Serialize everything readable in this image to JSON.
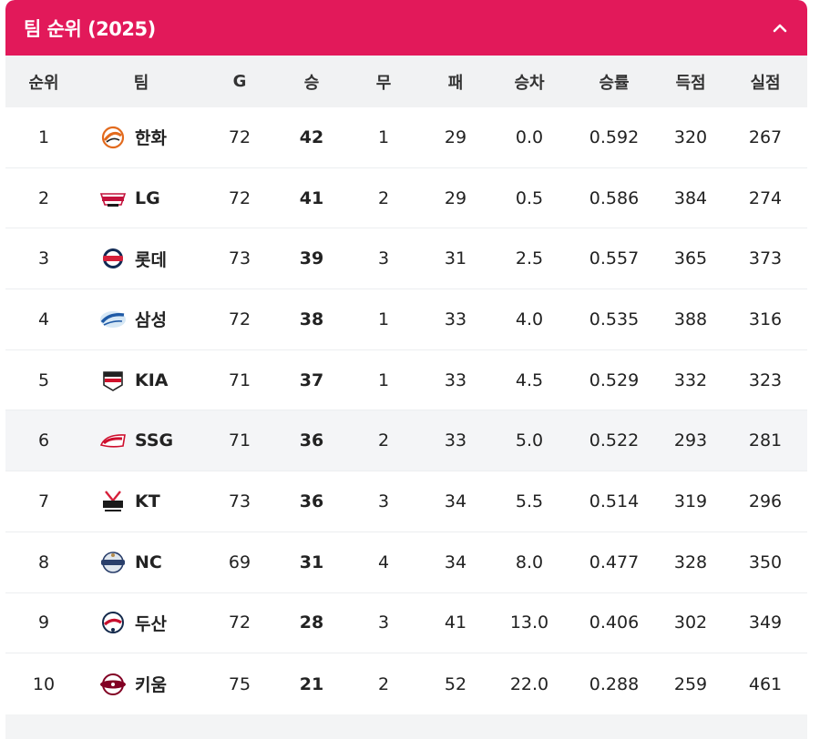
{
  "header": {
    "title": "팀 순위 (2025)",
    "collapse_icon": "chevron-up-icon"
  },
  "columns": [
    "순위",
    "팀",
    "G",
    "승",
    "무",
    "패",
    "승차",
    "승률",
    "득점",
    "실점"
  ],
  "colors": {
    "header_bg": "#e2195a",
    "header_text": "#ffffff"
  },
  "teams": [
    {
      "rank": "1",
      "name": "한화",
      "logo": "eagles-logo-icon",
      "g": "72",
      "w": "42",
      "d": "1",
      "l": "29",
      "gb": "0.0",
      "pct": "0.592",
      "rs": "320",
      "ra": "267"
    },
    {
      "rank": "2",
      "name": "LG",
      "logo": "twins-logo-icon",
      "g": "72",
      "w": "41",
      "d": "2",
      "l": "29",
      "gb": "0.5",
      "pct": "0.586",
      "rs": "384",
      "ra": "274"
    },
    {
      "rank": "3",
      "name": "롯데",
      "logo": "giants-logo-icon",
      "g": "73",
      "w": "39",
      "d": "3",
      "l": "31",
      "gb": "2.5",
      "pct": "0.557",
      "rs": "365",
      "ra": "373"
    },
    {
      "rank": "4",
      "name": "삼성",
      "logo": "lions-logo-icon",
      "g": "72",
      "w": "38",
      "d": "1",
      "l": "33",
      "gb": "4.0",
      "pct": "0.535",
      "rs": "388",
      "ra": "316"
    },
    {
      "rank": "5",
      "name": "KIA",
      "logo": "tigers-logo-icon",
      "g": "71",
      "w": "37",
      "d": "1",
      "l": "33",
      "gb": "4.5",
      "pct": "0.529",
      "rs": "332",
      "ra": "323"
    },
    {
      "rank": "6",
      "name": "SSG",
      "logo": "landers-logo-icon",
      "g": "71",
      "w": "36",
      "d": "2",
      "l": "33",
      "gb": "5.0",
      "pct": "0.522",
      "rs": "293",
      "ra": "281"
    },
    {
      "rank": "7",
      "name": "KT",
      "logo": "ktwiz-logo-icon",
      "g": "73",
      "w": "36",
      "d": "3",
      "l": "34",
      "gb": "5.5",
      "pct": "0.514",
      "rs": "319",
      "ra": "296"
    },
    {
      "rank": "8",
      "name": "NC",
      "logo": "dinos-logo-icon",
      "g": "69",
      "w": "31",
      "d": "4",
      "l": "34",
      "gb": "8.0",
      "pct": "0.477",
      "rs": "328",
      "ra": "350"
    },
    {
      "rank": "9",
      "name": "두산",
      "logo": "bears-logo-icon",
      "g": "72",
      "w": "28",
      "d": "3",
      "l": "41",
      "gb": "13.0",
      "pct": "0.406",
      "rs": "302",
      "ra": "349"
    },
    {
      "rank": "10",
      "name": "키움",
      "logo": "heroes-logo-icon",
      "g": "75",
      "w": "21",
      "d": "2",
      "l": "52",
      "gb": "22.0",
      "pct": "0.288",
      "rs": "259",
      "ra": "461"
    }
  ]
}
